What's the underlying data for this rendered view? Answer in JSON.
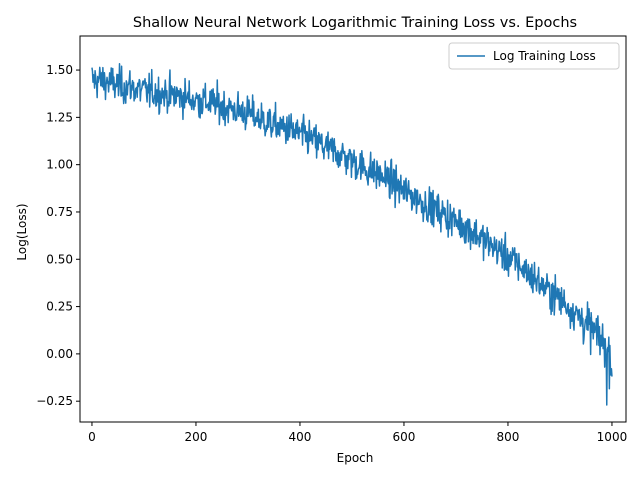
{
  "chart_data": {
    "type": "line",
    "title": "Shallow Neural Network Logarithmic Training Loss vs. Epochs",
    "xlabel": "Epoch",
    "ylabel": "Log(Loss)",
    "xlim": [
      -23,
      1027
    ],
    "ylim": [
      -0.36,
      1.68
    ],
    "xticks": [
      0,
      200,
      400,
      600,
      800,
      1000
    ],
    "yticks": [
      -0.25,
      0.0,
      0.25,
      0.5,
      0.75,
      1.0,
      1.25,
      1.5
    ],
    "xtick_labels": [
      "0",
      "200",
      "400",
      "600",
      "800",
      "1000"
    ],
    "ytick_labels": [
      "−0.25",
      "0.00",
      "0.25",
      "0.50",
      "0.75",
      "1.00",
      "1.25",
      "1.50"
    ],
    "grid": false,
    "legend_position": "top-right",
    "series": [
      {
        "name": "Log Training Loss",
        "color": "#1f77b4",
        "x": [
          0,
          25,
          50,
          75,
          100,
          125,
          150,
          175,
          200,
          225,
          250,
          275,
          300,
          325,
          350,
          375,
          400,
          425,
          450,
          475,
          500,
          525,
          550,
          575,
          600,
          625,
          650,
          675,
          700,
          725,
          750,
          775,
          800,
          825,
          850,
          875,
          900,
          925,
          950,
          975,
          990,
          1000
        ],
        "y": [
          1.45,
          1.44,
          1.42,
          1.41,
          1.39,
          1.38,
          1.37,
          1.36,
          1.34,
          1.33,
          1.31,
          1.29,
          1.27,
          1.24,
          1.21,
          1.19,
          1.16,
          1.13,
          1.09,
          1.06,
          1.02,
          0.98,
          0.95,
          0.91,
          0.86,
          0.82,
          0.78,
          0.74,
          0.7,
          0.66,
          0.61,
          0.56,
          0.51,
          0.46,
          0.4,
          0.34,
          0.29,
          0.23,
          0.16,
          0.09,
          0.04,
          -0.05
        ],
        "noise_amplitude": 0.08
      }
    ]
  }
}
